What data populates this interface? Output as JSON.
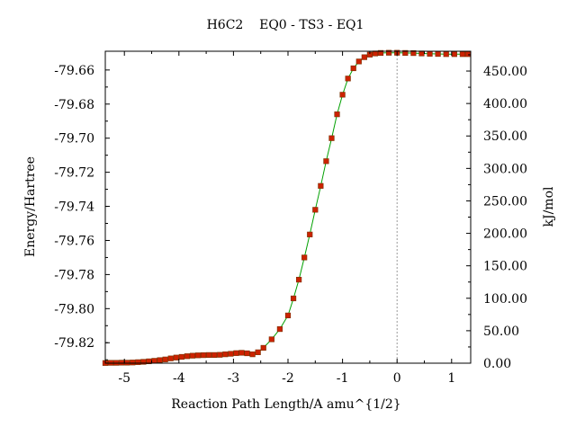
{
  "chart_data": {
    "type": "line",
    "title": "H6C2    EQ0 - TS3 - EQ1",
    "xlabel": "Reaction Path Length/A amu^{1/2}",
    "ylabel": "Energy/Hartree",
    "y2label": "kJ/mol",
    "xlim": [
      -5.35,
      1.35
    ],
    "ylim": [
      -79.832,
      -79.649
    ],
    "y2lim": [
      0.0,
      480.5
    ],
    "x_ticks": [
      -5,
      -4,
      -3,
      -2,
      -1,
      0,
      1
    ],
    "x_tick_labels": [
      "-5",
      "-4",
      "-3",
      "-2",
      "-1",
      "0",
      "1"
    ],
    "y_ticks": [
      -79.66,
      -79.68,
      -79.7,
      -79.72,
      -79.74,
      -79.76,
      -79.78,
      -79.8,
      -79.82
    ],
    "y_tick_labels": [
      "-79.66",
      "-79.68",
      "-79.70",
      "-79.72",
      "-79.74",
      "-79.76",
      "-79.78",
      "-79.80",
      "-79.82"
    ],
    "y2_ticks": [
      0,
      50,
      100,
      150,
      200,
      250,
      300,
      350,
      400,
      450
    ],
    "y2_tick_labels": [
      "0.00",
      "50.00",
      "100.00",
      "150.00",
      "200.00",
      "250.00",
      "300.00",
      "350.00",
      "400.00",
      "450.00"
    ],
    "grid": false,
    "reference_line_x": 0,
    "colors": {
      "line": "#00a000",
      "marker": "#cc2200",
      "marker_edge": "#7a3000",
      "reference": "#999999"
    },
    "series": [
      {
        "x": [
          -5.35,
          -5.25,
          -5.15,
          -5.05,
          -4.95,
          -4.85,
          -4.75,
          -4.65,
          -4.55,
          -4.45,
          -4.35,
          -4.25,
          -4.15,
          -4.05,
          -3.95,
          -3.85,
          -3.75,
          -3.65,
          -3.55,
          -3.45,
          -3.35,
          -3.25,
          -3.15,
          -3.05,
          -2.95,
          -2.85,
          -2.75,
          -2.65,
          -2.55,
          -2.45,
          -2.3,
          -2.15,
          -2.0,
          -1.9,
          -1.8,
          -1.7,
          -1.6,
          -1.5,
          -1.4,
          -1.3,
          -1.2,
          -1.1,
          -1.0,
          -0.9,
          -0.8,
          -0.7,
          -0.6,
          -0.5,
          -0.4,
          -0.3,
          -0.15,
          0.0,
          0.15,
          0.3,
          0.45,
          0.6,
          0.75,
          0.9,
          1.05,
          1.2,
          1.3
        ],
        "y": [
          -79.8319,
          -79.8318,
          -79.8318,
          -79.8317,
          -79.8317,
          -79.8316,
          -79.8314,
          -79.8312,
          -79.8309,
          -79.8306,
          -79.8302,
          -79.8298,
          -79.8292,
          -79.8287,
          -79.8283,
          -79.8279,
          -79.8276,
          -79.8274,
          -79.8273,
          -79.8272,
          -79.8272,
          -79.8271,
          -79.8268,
          -79.8265,
          -79.8261,
          -79.8259,
          -79.8262,
          -79.8268,
          -79.8256,
          -79.823,
          -79.818,
          -79.812,
          -79.804,
          -79.794,
          -79.783,
          -79.77,
          -79.7565,
          -79.742,
          -79.728,
          -79.7135,
          -79.7,
          -79.686,
          -79.6745,
          -79.665,
          -79.659,
          -79.655,
          -79.6525,
          -79.651,
          -79.6503,
          -79.65,
          -79.6499,
          -79.6499,
          -79.65,
          -79.6501,
          -79.6503,
          -79.6505,
          -79.6506,
          -79.6507,
          -79.6507,
          -79.6507,
          -79.6507
        ]
      }
    ]
  }
}
